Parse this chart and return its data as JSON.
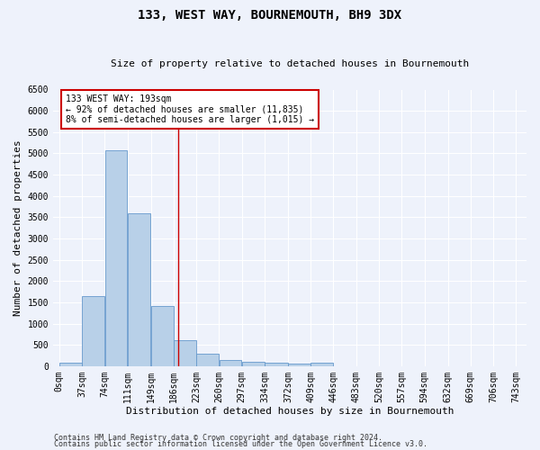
{
  "title": "133, WEST WAY, BOURNEMOUTH, BH9 3DX",
  "subtitle": "Size of property relative to detached houses in Bournemouth",
  "xlabel": "Distribution of detached houses by size in Bournemouth",
  "ylabel": "Number of detached properties",
  "footer1": "Contains HM Land Registry data © Crown copyright and database right 2024.",
  "footer2": "Contains public sector information licensed under the Open Government Licence v3.0.",
  "bar_edges": [
    0,
    37,
    74,
    111,
    149,
    186,
    223,
    260,
    297,
    334,
    372,
    409,
    446,
    483,
    520,
    557,
    594,
    632,
    669,
    706,
    743
  ],
  "bar_heights": [
    75,
    1650,
    5080,
    3600,
    1420,
    620,
    295,
    155,
    110,
    80,
    50,
    75,
    0,
    0,
    0,
    0,
    0,
    0,
    0,
    0
  ],
  "bar_color": "#b8d0e8",
  "bar_edge_color": "#6699cc",
  "vline_x": 193,
  "vline_color": "#cc0000",
  "annotation_line1": "133 WEST WAY: 193sqm",
  "annotation_line2": "← 92% of detached houses are smaller (11,835)",
  "annotation_line3": "8% of semi-detached houses are larger (1,015) →",
  "annotation_box_color": "#cc0000",
  "ylim": [
    0,
    6500
  ],
  "yticks": [
    0,
    500,
    1000,
    1500,
    2000,
    2500,
    3000,
    3500,
    4000,
    4500,
    5000,
    5500,
    6000,
    6500
  ],
  "bg_color": "#eef2fb",
  "grid_color": "#ffffff",
  "title_fontsize": 10,
  "subtitle_fontsize": 8,
  "tick_label_size": 7,
  "axis_label_size": 8,
  "ann_fontsize": 7,
  "footer_fontsize": 6
}
